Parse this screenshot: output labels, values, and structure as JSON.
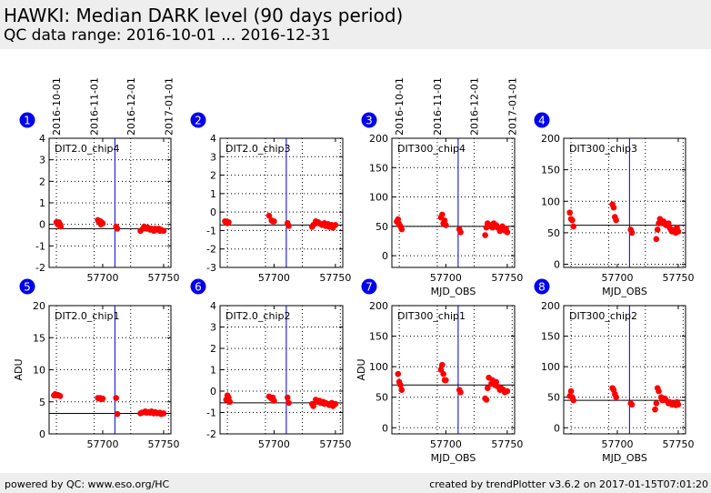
{
  "header": {
    "title": "HAWKI: Median DARK level (90 days period)",
    "subtitle": "QC data range: 2016-10-01 ... 2016-12-31"
  },
  "footer": {
    "left": "powered by QC: www.eso.org/HC",
    "right": "created by trendPlotter v3.6.2 on 2017-01-15T07:01:20"
  },
  "colors": {
    "points": "#ff0000",
    "median": "#000000",
    "marker": "#0000cc",
    "badge": "#0000ee",
    "grid": "#000000"
  },
  "chart_data": [
    {
      "id": "1",
      "type": "scatter",
      "label": "DIT2.0_chip4",
      "ylabel": "",
      "xlabel": "",
      "xlim": [
        57656,
        57756
      ],
      "ylim": [
        -2,
        4
      ],
      "yticks": [
        -2,
        -1,
        0,
        1,
        2,
        3,
        4
      ],
      "xticks": [
        57700,
        57750
      ],
      "median": -0.2,
      "marker_x": 57710,
      "x": [
        57662,
        57663,
        57663.5,
        57664,
        57665,
        57665.5,
        57696,
        57697,
        57698,
        57698.5,
        57699,
        57700,
        57711,
        57712,
        57731,
        57733,
        57734,
        57736,
        57737,
        57739,
        57740,
        57742,
        57743,
        57744,
        57746,
        57747,
        57748,
        57750
      ],
      "y": [
        0.1,
        0.0,
        0.05,
        0.1,
        0.0,
        -0.1,
        0.2,
        0.1,
        0.15,
        0.0,
        0.1,
        0.05,
        -0.1,
        -0.2,
        -0.3,
        -0.2,
        -0.1,
        -0.2,
        -0.15,
        -0.25,
        -0.2,
        -0.3,
        -0.2,
        -0.25,
        -0.2,
        -0.3,
        -0.25,
        -0.3
      ]
    },
    {
      "id": "2",
      "type": "scatter",
      "label": "DIT2.0_chip3",
      "ylabel": "",
      "xlabel": "",
      "xlim": [
        57656,
        57756
      ],
      "ylim": [
        -3,
        4
      ],
      "yticks": [
        -3,
        -2,
        -1,
        0,
        1,
        2,
        3,
        4
      ],
      "xticks": [
        57700,
        57750
      ],
      "median": -0.7,
      "marker_x": 57710,
      "x": [
        57660,
        57661,
        57662,
        57663,
        57696,
        57698,
        57699,
        57700,
        57711,
        57712,
        57731,
        57732,
        57734,
        57735,
        57736,
        57738,
        57739,
        57741,
        57742,
        57744,
        57745,
        57747,
        57748,
        57750
      ],
      "y": [
        -0.5,
        -0.55,
        -0.6,
        -0.55,
        -0.2,
        -0.45,
        -0.5,
        -0.5,
        -0.6,
        -0.75,
        -0.8,
        -0.7,
        -0.5,
        -0.6,
        -0.55,
        -0.65,
        -0.7,
        -0.6,
        -0.75,
        -0.65,
        -0.8,
        -0.7,
        -0.85,
        -0.7
      ]
    },
    {
      "id": "3",
      "type": "scatter",
      "label": "DIT300_chip4",
      "ylabel": "",
      "xlabel": "MJD_OBS",
      "xlim": [
        57656,
        57756
      ],
      "ylim": [
        -20,
        200
      ],
      "yticks": [
        0,
        50,
        100,
        150,
        200
      ],
      "xticks": [
        57700,
        57750
      ],
      "median": 50,
      "marker_x": 57710,
      "x": [
        57660,
        57661,
        57661.5,
        57662,
        57663,
        57664,
        57696,
        57697,
        57698,
        57699,
        57700,
        57711,
        57712,
        57732,
        57733,
        57734,
        57735,
        57736,
        57738,
        57739,
        57740,
        57741,
        57742,
        57744,
        57745,
        57746,
        57748,
        57749,
        57750
      ],
      "y": [
        58,
        62,
        55,
        53,
        50,
        45,
        65,
        70,
        55,
        60,
        52,
        45,
        40,
        35,
        48,
        55,
        50,
        52,
        48,
        55,
        50,
        52,
        48,
        42,
        45,
        50,
        43,
        46,
        40
      ]
    },
    {
      "id": "4",
      "type": "scatter",
      "label": "DIT300_chip3",
      "ylabel": "",
      "xlabel": "MJD_OBS",
      "xlim": [
        57656,
        57756
      ],
      "ylim": [
        -5,
        200
      ],
      "yticks": [
        0,
        50,
        100,
        150,
        200
      ],
      "xticks": [
        57700,
        57750
      ],
      "median": 62,
      "marker_x": 57710,
      "x": [
        57661,
        57662,
        57663,
        57664,
        57696,
        57697,
        57698,
        57699,
        57711,
        57712,
        57732,
        57733,
        57734,
        57735,
        57737,
        57738,
        57740,
        57742,
        57743,
        57744,
        57745,
        57747,
        57748,
        57749,
        57750
      ],
      "y": [
        82,
        72,
        70,
        60,
        95,
        90,
        75,
        70,
        55,
        50,
        40,
        55,
        65,
        72,
        65,
        68,
        62,
        65,
        58,
        55,
        52,
        55,
        50,
        58,
        52
      ]
    },
    {
      "id": "5",
      "type": "scatter",
      "label": "DIT2.0_chip1",
      "ylabel": "ADU",
      "xlabel": "",
      "xlim": [
        57656,
        57756
      ],
      "ylim": [
        0,
        20
      ],
      "yticks": [
        0,
        5,
        10,
        15,
        20
      ],
      "xticks": [
        57700,
        57750
      ],
      "median": 3.2,
      "marker_x": 57710,
      "x": [
        57660,
        57661,
        57662,
        57663,
        57664,
        57665,
        57696,
        57697,
        57698,
        57699,
        57700,
        57711,
        57712,
        57731,
        57732,
        57734,
        57735,
        57736,
        57738,
        57739,
        57740,
        57742,
        57743,
        57744,
        57745,
        57747,
        57748,
        57750
      ],
      "y": [
        6.0,
        6.2,
        6.0,
        6.1,
        6.0,
        5.9,
        5.6,
        5.5,
        5.6,
        5.4,
        5.5,
        5.6,
        3.1,
        3.2,
        3.3,
        3.4,
        3.5,
        3.3,
        3.4,
        3.3,
        3.5,
        3.2,
        3.4,
        3.3,
        3.2,
        3.3,
        3.1,
        3.2
      ]
    },
    {
      "id": "6",
      "type": "scatter",
      "label": "DIT2.0_chip2",
      "ylabel": "",
      "xlabel": "",
      "xlim": [
        57656,
        57756
      ],
      "ylim": [
        -2,
        4
      ],
      "yticks": [
        -2,
        -1,
        0,
        1,
        2,
        3,
        4
      ],
      "xticks": [
        57700,
        57750
      ],
      "median": -0.55,
      "marker_x": 57710,
      "x": [
        57661,
        57662,
        57663,
        57664,
        57696,
        57697,
        57698,
        57699,
        57700,
        57711,
        57712,
        57731,
        57732,
        57734,
        57735,
        57737,
        57738,
        57740,
        57741,
        57742,
        57744,
        57745,
        57747,
        57748,
        57750
      ],
      "y": [
        -0.4,
        -0.2,
        -0.3,
        -0.5,
        -0.25,
        -0.3,
        -0.35,
        -0.3,
        -0.45,
        -0.3,
        -0.55,
        -0.6,
        -0.7,
        -0.4,
        -0.5,
        -0.45,
        -0.55,
        -0.5,
        -0.6,
        -0.55,
        -0.6,
        -0.65,
        -0.55,
        -0.7,
        -0.6
      ]
    },
    {
      "id": "7",
      "type": "scatter",
      "label": "DIT300_chip1",
      "ylabel": "ADU",
      "xlabel": "MJD_OBS",
      "xlim": [
        57656,
        57756
      ],
      "ylim": [
        -10,
        200
      ],
      "yticks": [
        0,
        50,
        100,
        150,
        200
      ],
      "xticks": [
        57700,
        57750
      ],
      "median": 70,
      "marker_x": 57710,
      "x": [
        57661,
        57662,
        57663,
        57664,
        57696,
        57697,
        57698,
        57699,
        57700,
        57711,
        57712,
        57732,
        57733,
        57734,
        57735,
        57737,
        57738,
        57740,
        57741,
        57742,
        57744,
        57745,
        57747,
        57748,
        57750
      ],
      "y": [
        88,
        75,
        70,
        62,
        95,
        103,
        88,
        78,
        78,
        62,
        58,
        48,
        46,
        65,
        82,
        72,
        78,
        70,
        75,
        68,
        62,
        65,
        62,
        58,
        60
      ]
    },
    {
      "id": "8",
      "type": "scatter",
      "label": "DIT300_chip2",
      "ylabel": "",
      "xlabel": "MJD_OBS",
      "xlim": [
        57656,
        57756
      ],
      "ylim": [
        -10,
        200
      ],
      "yticks": [
        0,
        50,
        100,
        150,
        200
      ],
      "xticks": [
        57700,
        57750
      ],
      "median": 45,
      "marker_x": 57710,
      "x": [
        57661,
        57662,
        57663,
        57664,
        57696,
        57697,
        57698,
        57699,
        57711,
        57712,
        57731,
        57732,
        57733,
        57734,
        57736,
        57737,
        57739,
        57740,
        57742,
        57743,
        57745,
        57746,
        57748,
        57749,
        57750
      ],
      "y": [
        52,
        60,
        50,
        45,
        65,
        62,
        55,
        50,
        40,
        38,
        30,
        40,
        65,
        60,
        50,
        45,
        48,
        45,
        40,
        42,
        38,
        40,
        37,
        42,
        38
      ]
    }
  ],
  "date_axes": [
    {
      "labels": [
        "2016-10-01",
        "2016-11-01",
        "2016-12-01",
        "2017-01-01"
      ],
      "x": [
        57662,
        57693,
        57723,
        57754
      ]
    }
  ]
}
